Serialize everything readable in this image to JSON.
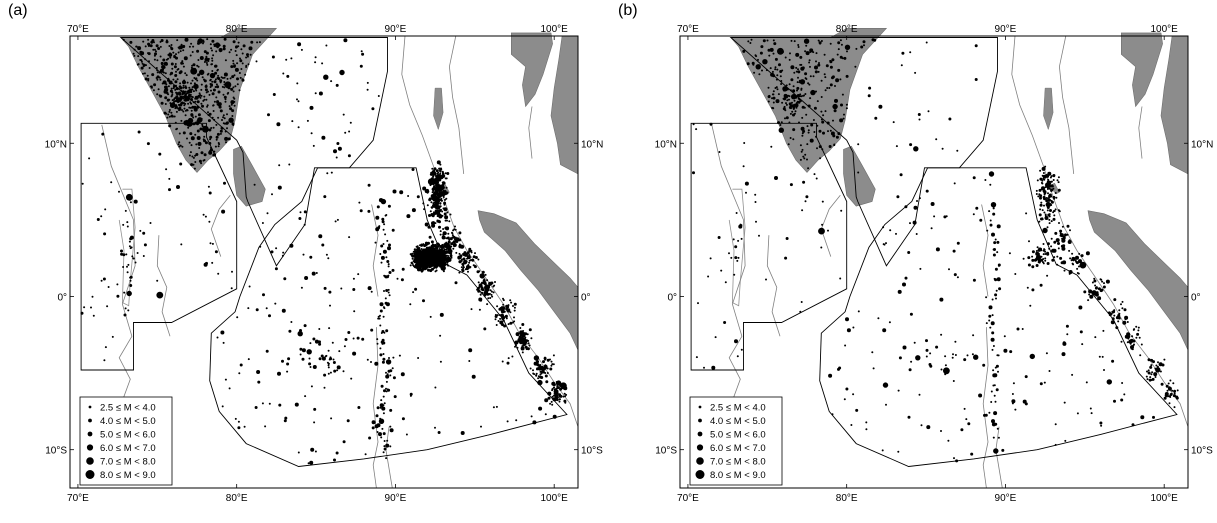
{
  "panels": [
    {
      "label": "(a)"
    },
    {
      "label": "(b)"
    }
  ],
  "axes": {
    "lon_ticks": [
      "70°E",
      "80°E",
      "90°E",
      "100°E"
    ],
    "lat_ticks": [
      "10°N",
      "0°",
      "10°S"
    ],
    "lon_range": [
      69.5,
      101.5
    ],
    "lat_range": [
      -12.5,
      17
    ]
  },
  "legend": {
    "entries": [
      "2.5 ≤ M < 4.0",
      "4.0 ≤ M < 5.0",
      "5.0 ≤ M < 6.0",
      "6.0 ≤ M < 7.0",
      "7.0 ≤ M < 8.0",
      "8.0 ≤ M < 9.0"
    ]
  },
  "colors": {
    "land": "#8c8c8c",
    "coast": "#808080",
    "zones": "#000000",
    "events": "#000000"
  }
}
